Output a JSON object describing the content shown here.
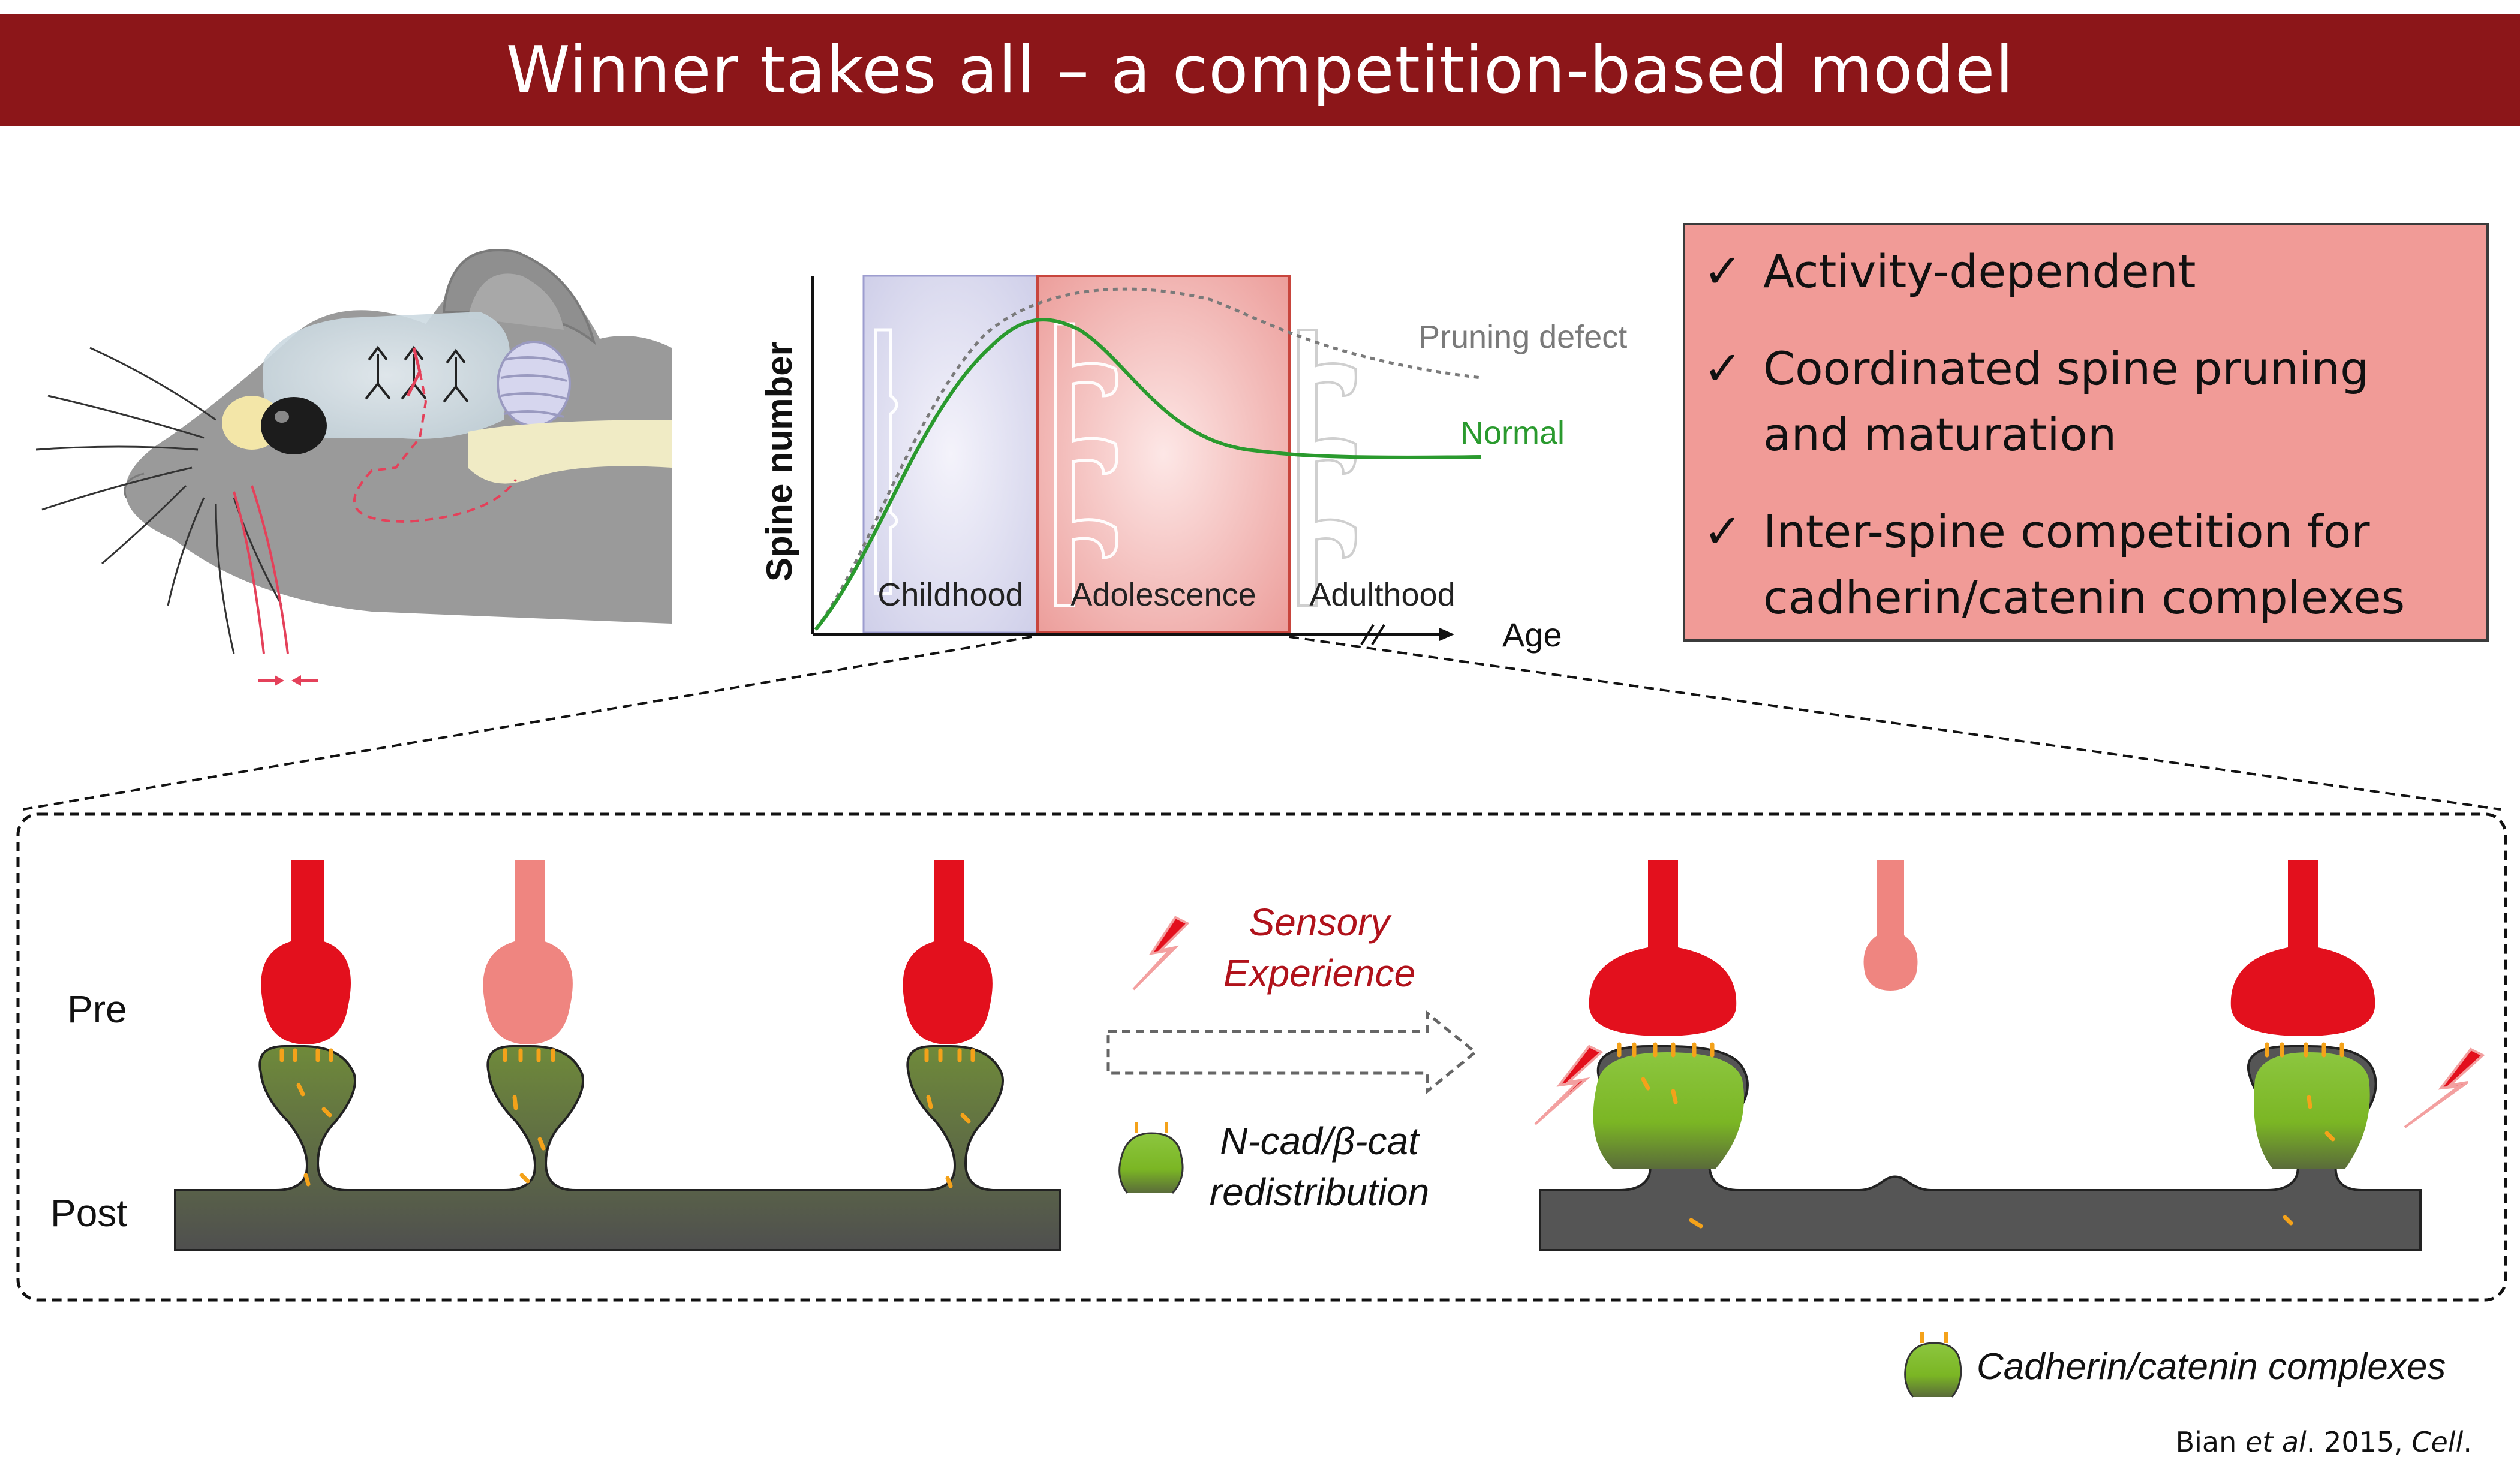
{
  "title": "Winner takes all – a competition-based model",
  "panel": {
    "items": [
      "Activity-dependent",
      "Coordinated spine pruning and maturation",
      "Inter-spine competition for cadherin/catenin complexes"
    ]
  },
  "graph": {
    "ylabel": "Spine number",
    "xlabel": "Age",
    "phases": [
      "Childhood",
      "Adolescence",
      "Adulthood"
    ],
    "curve_labels": {
      "defect": "Pruning defect",
      "normal": "Normal"
    }
  },
  "lower": {
    "pre": "Pre",
    "post": "Post",
    "sensory_line1": "Sensory",
    "sensory_line2": "Experience",
    "ncad_line1": "N-cad/β-cat",
    "ncad_line2": "redistribution"
  },
  "legend": "Cadherin/catenin complexes",
  "citation": {
    "author": "Bian ",
    "etal": "et al",
    "year": ". 2015, ",
    "journal": "Cell",
    "end": "."
  },
  "colors": {
    "title_bar": "#8c1619",
    "panel": "#f19b97",
    "pre_active": "#e3101d",
    "pre_weak": "#ef8580",
    "spine_green": "#7bb624",
    "dendrite_dark": "#545454",
    "normal_curve": "#2a9a2e",
    "sensory_text": "#b0121b"
  }
}
